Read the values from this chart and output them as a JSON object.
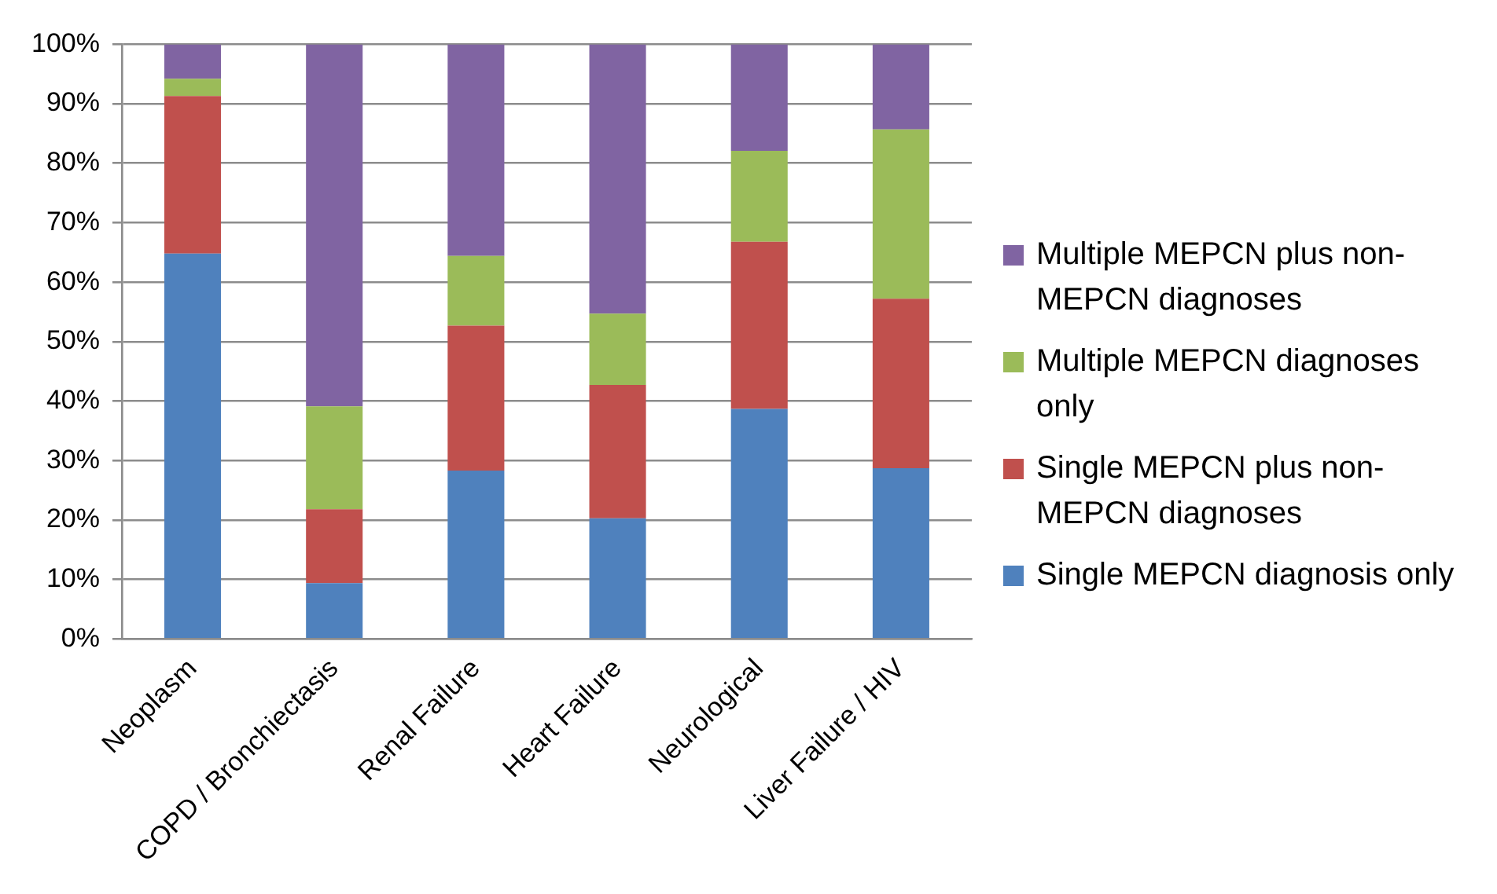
{
  "chart_data": {
    "type": "bar",
    "stacked": true,
    "categories": [
      "Neoplasm",
      "COPD / Bronchiectasis",
      "Renal Failure",
      "Heart Failure",
      "Neurological",
      "Liver Failure / HIV"
    ],
    "series": [
      {
        "name": "Single MEPCN diagnosis only",
        "color": "#4f81bd",
        "values": [
          64.8,
          9.4,
          28.3,
          20.3,
          38.7,
          28.7
        ]
      },
      {
        "name": "Single MEPCN  plus non-MEPCN diagnoses",
        "color": "#c0504d",
        "values": [
          26.5,
          12.4,
          24.4,
          22.4,
          28.1,
          28.5
        ]
      },
      {
        "name": "Multiple MEPCN diagnoses only",
        "color": "#9bbb59",
        "values": [
          2.9,
          17.3,
          11.7,
          12.0,
          15.3,
          28.5
        ]
      },
      {
        "name": "Multiple MEPCN plus non-MEPCN diagnoses",
        "color": "#8064a2",
        "values": [
          5.8,
          60.9,
          35.6,
          45.3,
          17.9,
          14.3
        ]
      }
    ],
    "ylim": [
      0,
      100
    ],
    "yticks": [
      {
        "value": 0,
        "label": "0%"
      },
      {
        "value": 10,
        "label": "10%"
      },
      {
        "value": 20,
        "label": "20%"
      },
      {
        "value": 30,
        "label": "30%"
      },
      {
        "value": 40,
        "label": "40%"
      },
      {
        "value": 50,
        "label": "50%"
      },
      {
        "value": 60,
        "label": "60%"
      },
      {
        "value": 70,
        "label": "70%"
      },
      {
        "value": 80,
        "label": "80%"
      },
      {
        "value": 90,
        "label": "90%"
      },
      {
        "value": 100,
        "label": "100%"
      }
    ],
    "grid": "y",
    "legend": "right"
  }
}
